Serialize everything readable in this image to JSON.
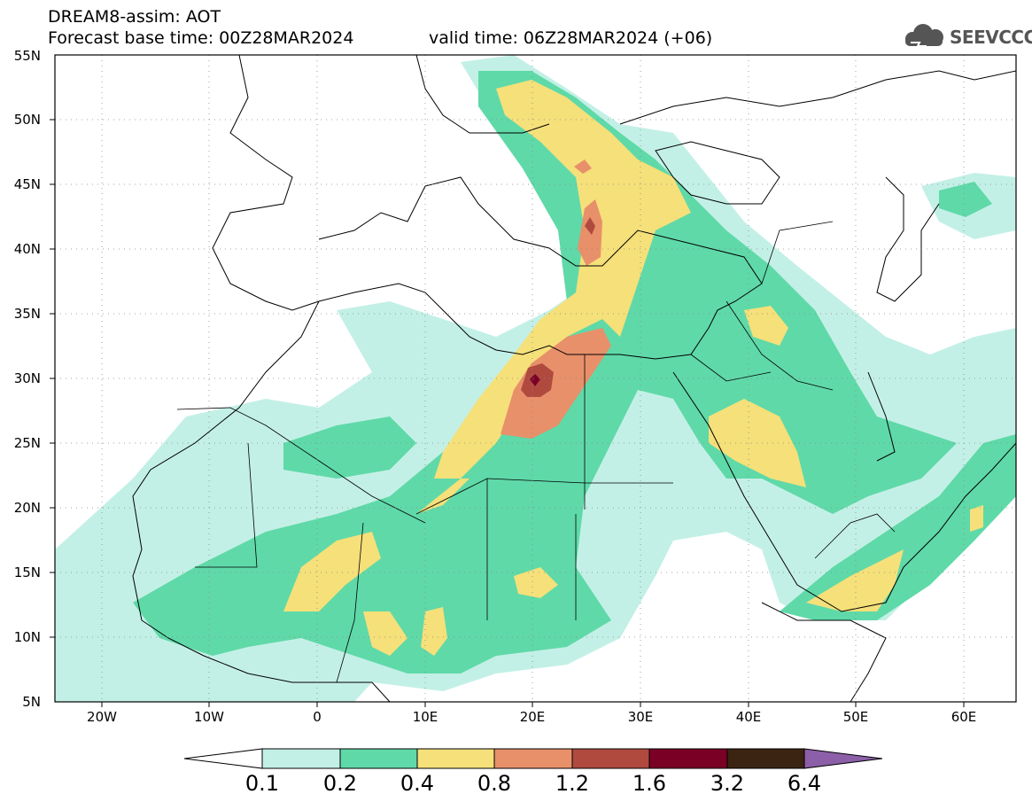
{
  "title": {
    "line1": "DREAM8-assim: AOT",
    "line2": "Forecast base time: 00Z28MAR2024",
    "line3": "valid time: 06Z28MAR2024 (+06)"
  },
  "logo": {
    "text": "SEEVCCC",
    "color": "#555555"
  },
  "axes": {
    "lat_labels": [
      "55N",
      "50N",
      "45N",
      "40N",
      "35N",
      "30N",
      "25N",
      "20N",
      "15N",
      "10N",
      "5N"
    ],
    "lon_labels": [
      "20W",
      "10W",
      "0",
      "10E",
      "20E",
      "30E",
      "40E",
      "50E",
      "60E"
    ]
  },
  "colorbar": {
    "labels": [
      "0.1",
      "0.2",
      "0.4",
      "0.8",
      "1.2",
      "1.6",
      "3.2",
      "6.4"
    ],
    "colors": [
      "#c3f0e6",
      "#5fd9a8",
      "#f5e07a",
      "#e8906a",
      "#b04a3f",
      "#7a0026",
      "#3b2412",
      "#8c5fa8"
    ]
  },
  "map_colors": {
    "c1": "#c3f0e6",
    "c2": "#5fd9a8",
    "c3": "#f5e07a",
    "c4": "#e8906a",
    "c5": "#b04a3f",
    "c6": "#7a0026"
  }
}
